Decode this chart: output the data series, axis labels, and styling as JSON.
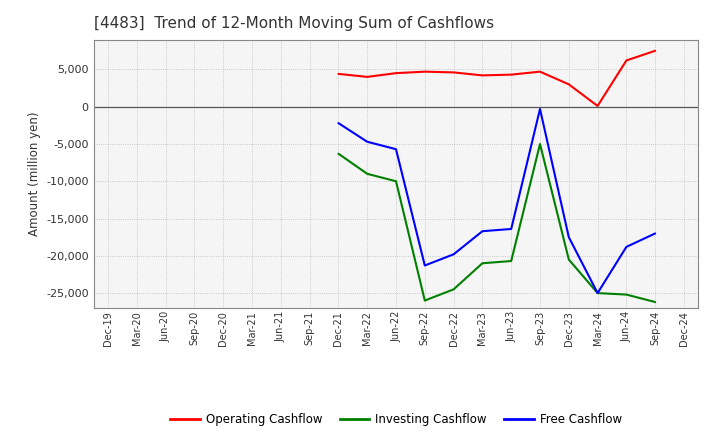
{
  "title": "[4483]  Trend of 12-Month Moving Sum of Cashflows",
  "ylabel": "Amount (million yen)",
  "ylim": [
    -27000,
    9000
  ],
  "yticks": [
    -25000,
    -20000,
    -15000,
    -10000,
    -5000,
    0,
    5000
  ],
  "background_color": "#ffffff",
  "plot_bg_color": "#f5f5f5",
  "grid_color": "#bbbbbb",
  "title_color": "#333333",
  "x_labels": [
    "Dec-19",
    "Mar-20",
    "Jun-20",
    "Sep-20",
    "Dec-20",
    "Mar-21",
    "Jun-21",
    "Sep-21",
    "Dec-21",
    "Mar-22",
    "Jun-22",
    "Sep-22",
    "Dec-22",
    "Mar-23",
    "Jun-23",
    "Sep-23",
    "Dec-23",
    "Mar-24",
    "Jun-24",
    "Sep-24",
    "Dec-24"
  ],
  "operating_cashflow": {
    "color": "#ff0000",
    "data": [
      null,
      null,
      null,
      null,
      null,
      null,
      null,
      null,
      4400,
      4000,
      4500,
      4700,
      4600,
      4200,
      4300,
      4700,
      3000,
      100,
      6200,
      7500,
      null
    ]
  },
  "investing_cashflow": {
    "color": "#008000",
    "data": [
      null,
      null,
      null,
      null,
      null,
      null,
      null,
      null,
      -6300,
      -9000,
      -10000,
      -26000,
      -24500,
      -21000,
      -20700,
      -5000,
      -20500,
      -25000,
      -25200,
      -26200,
      null
    ]
  },
  "free_cashflow": {
    "color": "#0000ff",
    "data": [
      null,
      null,
      null,
      null,
      null,
      null,
      null,
      null,
      -2200,
      -4700,
      -5700,
      -21300,
      -19800,
      -16700,
      -16400,
      -300,
      -17500,
      -25000,
      -18800,
      -17000,
      null
    ]
  },
  "legend": [
    {
      "label": "Operating Cashflow",
      "color": "#ff0000"
    },
    {
      "label": "Investing Cashflow",
      "color": "#008000"
    },
    {
      "label": "Free Cashflow",
      "color": "#0000ff"
    }
  ]
}
